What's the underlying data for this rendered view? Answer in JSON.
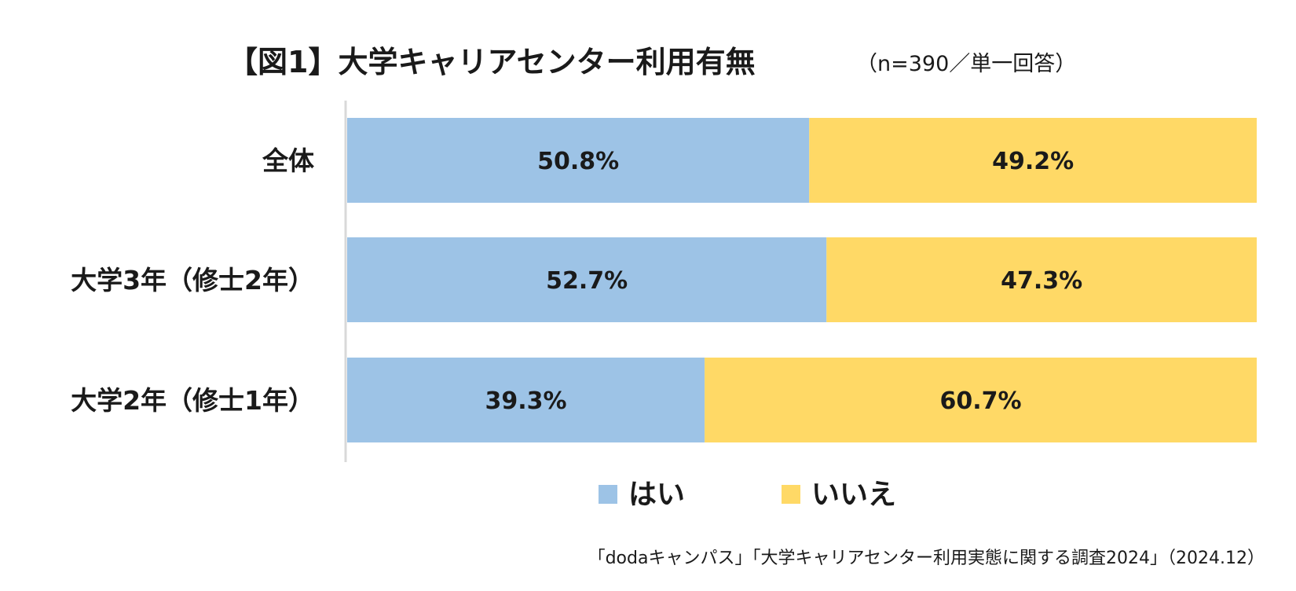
{
  "colors": {
    "yes": "#9dc3e6",
    "no": "#ffd966",
    "axis": "#d9d9d9",
    "text": "#1a1a1a"
  },
  "chart_data": {
    "type": "bar",
    "orientation": "horizontal",
    "stacked": true,
    "title": "【図1】大学キャリアセンター利用有無",
    "subtitle": "（n=390／単一回答）",
    "categories": [
      "全体",
      "大学3年（修士2年）",
      "大学2年（修士1年）"
    ],
    "series": [
      {
        "name": "はい",
        "values": [
          50.8,
          52.7,
          39.3
        ],
        "labels": [
          "50.8%",
          "52.7%",
          "39.3%"
        ]
      },
      {
        "name": "いいえ",
        "values": [
          49.2,
          47.3,
          60.7
        ],
        "labels": [
          "49.2%",
          "47.3%",
          "60.7%"
        ]
      }
    ],
    "xlim": [
      0,
      100
    ],
    "legend": "bottom-center",
    "source": "「dodaキャンパス」「大学キャリアセンター利用実態に関する調査2024」（2024.12）"
  }
}
